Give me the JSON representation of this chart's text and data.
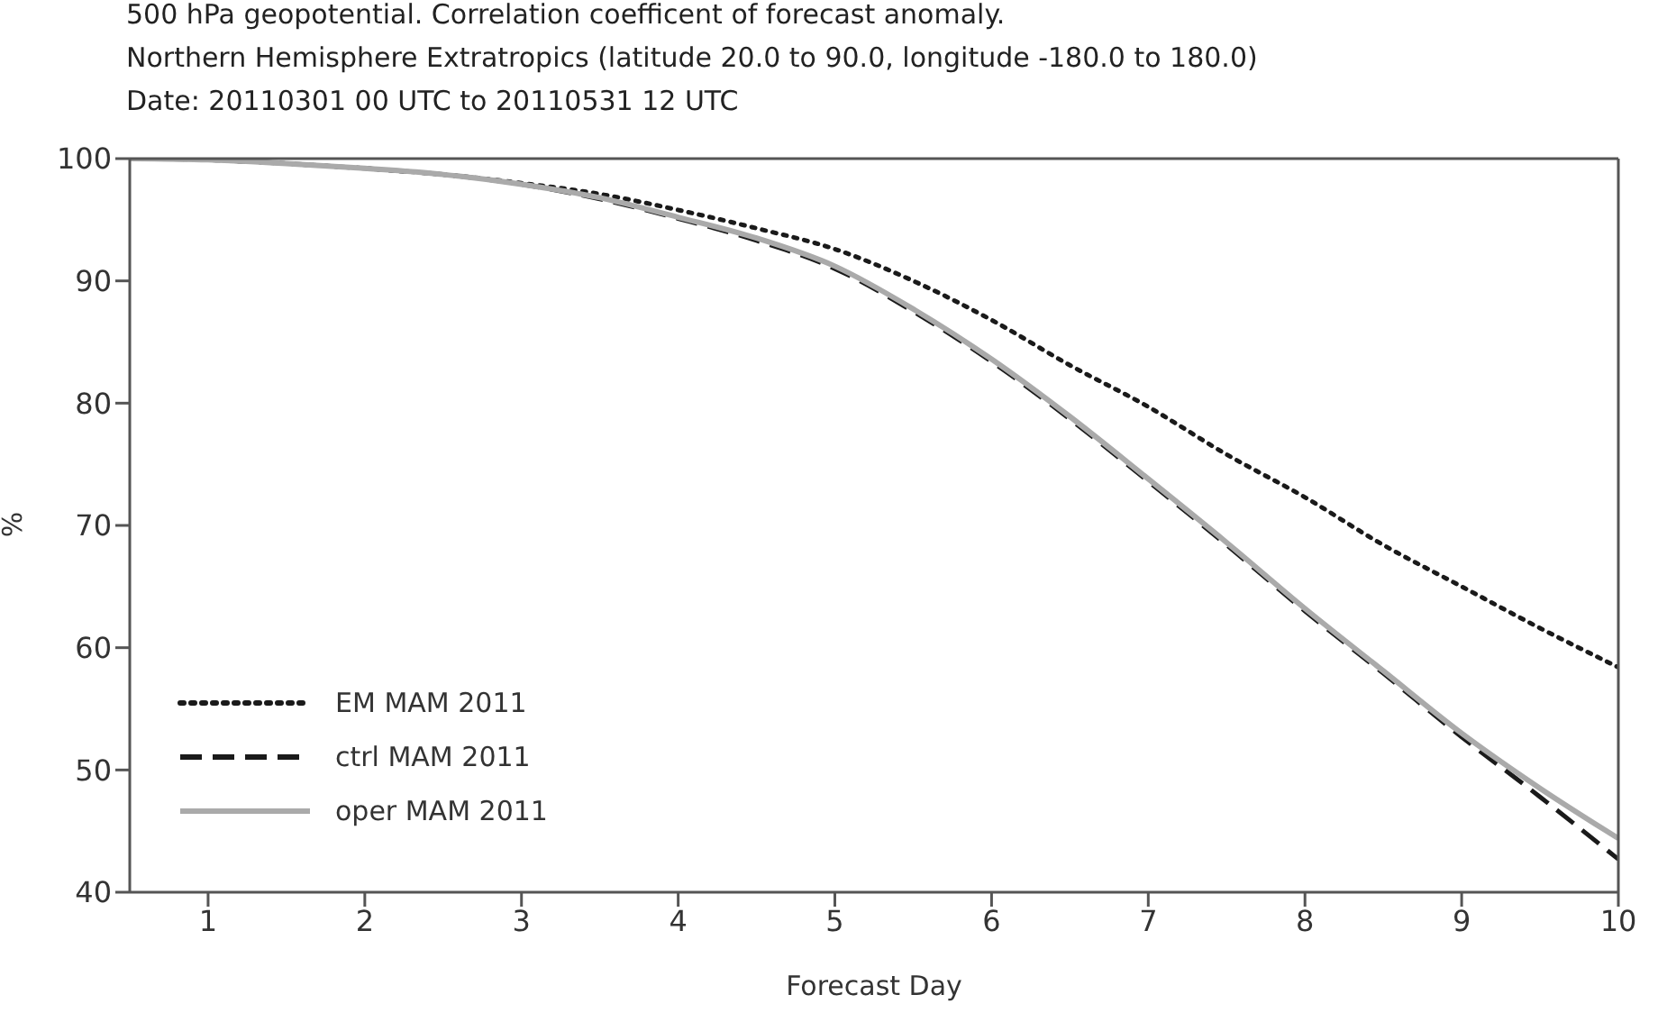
{
  "chart_data": {
    "type": "line",
    "title": "500 hPa geopotential. Correlation coefficent of forecast anomaly.",
    "subtitle": "Northern Hemisphere Extratropics (latitude  20.0 to 90.0, longitude  -180.0 to 180.0)\nDate: 20110301 00 UTC to 20110531 12 UTC",
    "xlabel": "Forecast Day",
    "ylabel": "%",
    "x": [
      0.5,
      1,
      1.5,
      2,
      2.5,
      3,
      3.5,
      4,
      4.5,
      5,
      5.5,
      6,
      6.5,
      7,
      7.5,
      8,
      8.5,
      9,
      9.5,
      10
    ],
    "series": [
      {
        "name": "EM MAM 2011",
        "color": "#1a1a1a",
        "line_style": "dotted",
        "values": [
          100,
          99.9,
          99.6,
          99.2,
          98.7,
          98.0,
          97.1,
          95.8,
          94.3,
          92.6,
          90.0,
          86.8,
          83.1,
          79.7,
          75.8,
          72.3,
          68.4,
          65.0,
          61.6,
          58.4
        ]
      },
      {
        "name": "ctrl MAM 2011",
        "color": "#1a1a1a",
        "line_style": "dashed",
        "values": [
          100,
          99.9,
          99.6,
          99.2,
          98.7,
          97.9,
          96.7,
          95.1,
          93.3,
          91.0,
          87.5,
          83.4,
          78.7,
          73.6,
          68.4,
          63.0,
          57.9,
          52.7,
          47.8,
          42.7
        ]
      },
      {
        "name": "oper MAM 2011",
        "color": "#aaaaaa",
        "line_style": "solid",
        "values": [
          100,
          99.9,
          99.6,
          99.2,
          98.7,
          97.9,
          96.8,
          95.2,
          93.5,
          91.2,
          87.7,
          83.6,
          78.9,
          73.8,
          68.6,
          63.2,
          58.1,
          53.0,
          48.5,
          44.4
        ]
      }
    ],
    "xlim": [
      0.5,
      10
    ],
    "xticks": [
      1,
      2,
      3,
      4,
      5,
      6,
      7,
      8,
      9,
      10
    ],
    "ylim": [
      40,
      100
    ],
    "yticks": [
      40,
      50,
      60,
      70,
      80,
      90,
      100
    ],
    "grid": false,
    "legend": "bottom left",
    "marker": "none"
  }
}
